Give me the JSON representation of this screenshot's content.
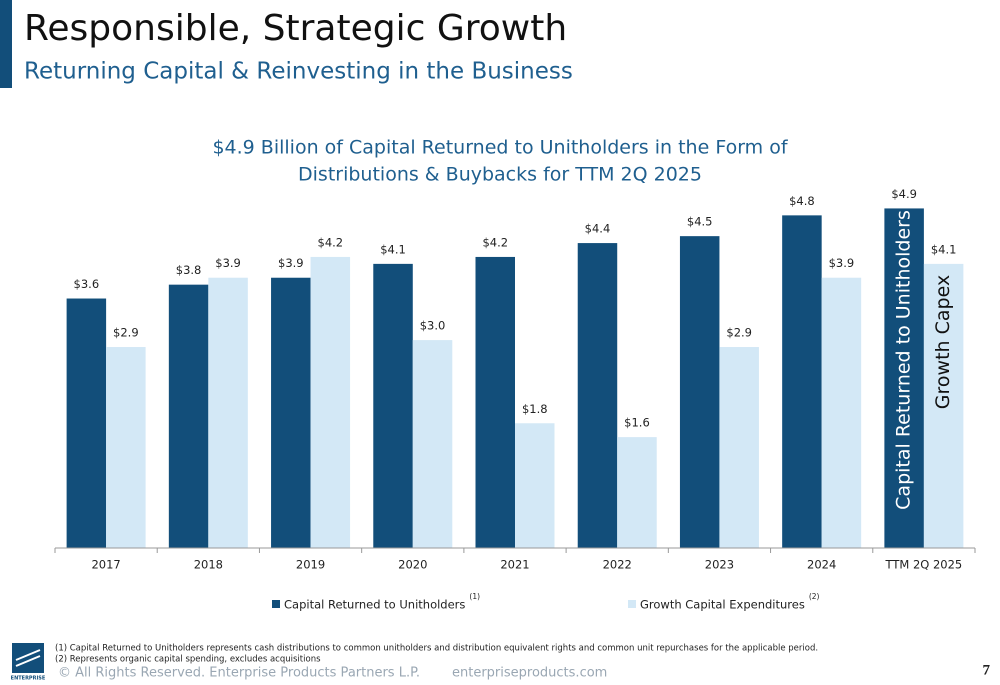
{
  "header": {
    "title": "Responsible, Strategic Growth",
    "subtitle": "Returning Capital & Reinvesting in the Business"
  },
  "chart_data": {
    "type": "bar",
    "title_lines": [
      "$4.9 Billion of Capital Returned to Unitholders in the Form of",
      "Distributions & Buybacks for TTM 2Q 2025"
    ],
    "categories": [
      "2017",
      "2018",
      "2019",
      "2020",
      "2021",
      "2022",
      "2023",
      "2024",
      "TTM 2Q 2025"
    ],
    "series": [
      {
        "name": "Capital Returned to Unitholders",
        "note": "(1)",
        "color": "#124e7a",
        "values": [
          3.6,
          3.8,
          3.9,
          4.1,
          4.2,
          4.4,
          4.5,
          4.8,
          4.9
        ],
        "value_labels": [
          "$3.6",
          "$3.8",
          "$3.9",
          "$4.1",
          "$4.2",
          "$4.4",
          "$4.5",
          "$4.8",
          "$4.9"
        ]
      },
      {
        "name": "Growth Capital Expenditures",
        "note": "(2)",
        "color": "#d3e8f6",
        "values": [
          2.9,
          3.9,
          4.2,
          3.0,
          1.8,
          1.6,
          2.9,
          3.9,
          4.1
        ],
        "value_labels": [
          "$2.9",
          "$3.9",
          "$4.2",
          "$3.0",
          "$1.8",
          "$1.6",
          "$2.9",
          "$3.9",
          "$4.1"
        ]
      }
    ],
    "annotations": [
      "Capital Returned to Unitholders",
      "Growth Capex"
    ]
  },
  "footnotes": [
    "(1)  Capital Returned to Unitholders represents cash distributions to common unitholders and distribution equivalent rights and common unit repurchases for the applicable period.",
    "(2)  Represents organic capital spending, excludes acquisitions"
  ],
  "footer": {
    "logo": "ENTERPRISE",
    "copyright": "© All Rights Reserved. Enterprise Products Partners L.P.",
    "website": "enterpriseproducts.com",
    "page": "7"
  }
}
